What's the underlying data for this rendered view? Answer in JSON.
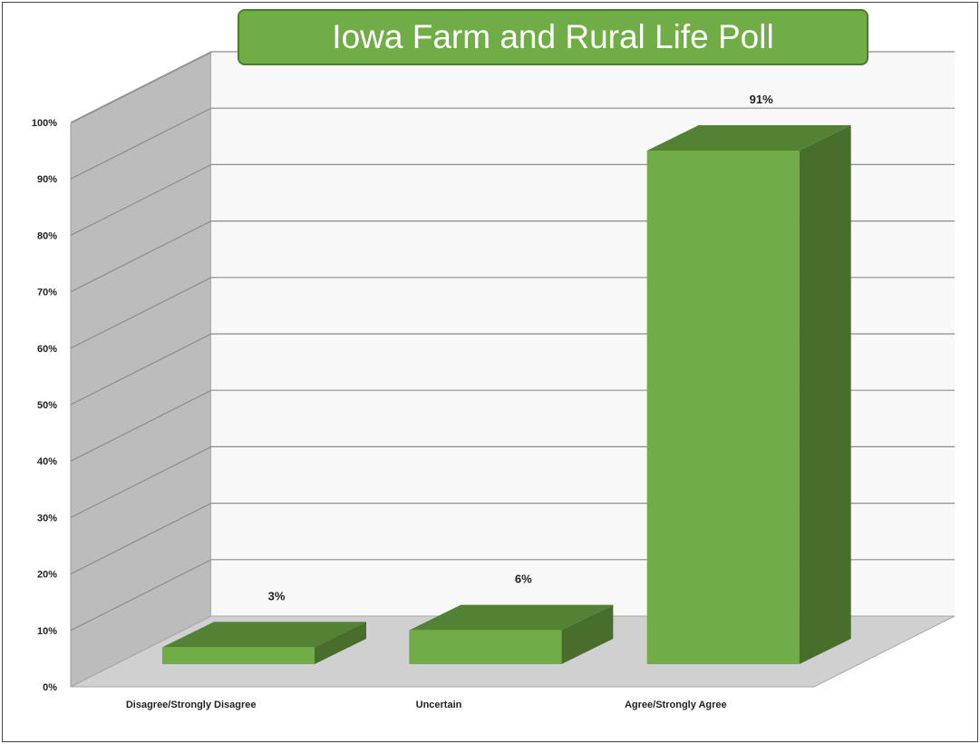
{
  "chart_data": {
    "type": "bar",
    "title": "Iowa Farm and Rural Life Poll",
    "categories": [
      "Disagree/Strongly Disagree",
      "Uncertain",
      "Agree/Strongly Agree"
    ],
    "values": [
      3,
      6,
      91
    ],
    "data_labels": [
      "3%",
      "6%",
      "91%"
    ],
    "y_ticks": [
      "0%",
      "10%",
      "20%",
      "30%",
      "40%",
      "50%",
      "60%",
      "70%",
      "80%",
      "90%",
      "100%"
    ],
    "ylim": [
      0,
      100
    ],
    "xlabel": "",
    "ylabel": "",
    "grid": true,
    "legend": "none",
    "style": "3d-column",
    "colors": {
      "bar_front": "#70ad47",
      "bar_top": "#548235",
      "bar_side": "#476e2b",
      "back_wall": "#f8f8f8",
      "side_wall": "#bcbcbc",
      "floor": "#d0d0d0",
      "grid": "#8c8c8c"
    }
  }
}
